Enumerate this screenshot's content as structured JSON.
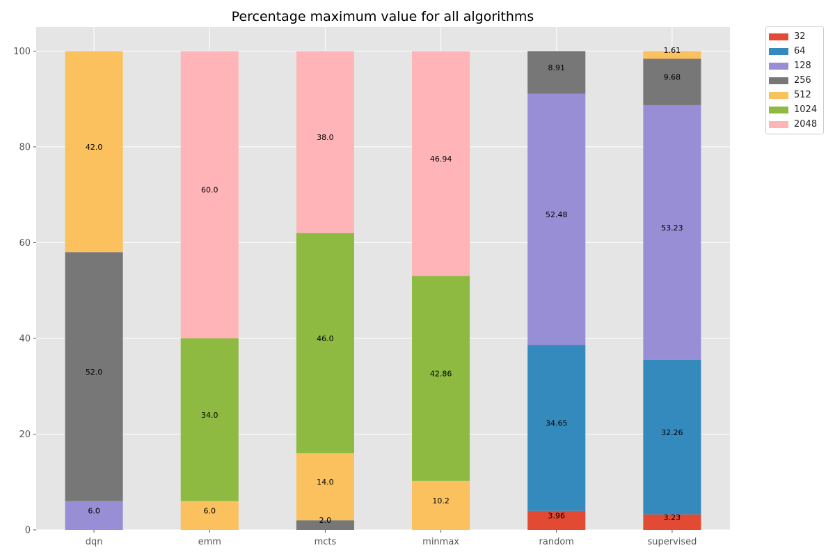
{
  "chart_data": {
    "type": "bar",
    "stacked": true,
    "title": "Percentage maximum value for all algorithms",
    "xlabel": "",
    "ylabel": "",
    "categories": [
      "dqn",
      "emm",
      "mcts",
      "minmax",
      "random",
      "supervised"
    ],
    "ylim": [
      0,
      105
    ],
    "yticks": [
      0,
      20,
      40,
      60,
      80,
      100
    ],
    "grid": true,
    "legend_position": "outside-top-right",
    "series": [
      {
        "name": "32",
        "color": "#E24A33",
        "values": [
          0,
          0,
          0,
          0,
          3.96,
          3.23
        ]
      },
      {
        "name": "64",
        "color": "#348ABD",
        "values": [
          0,
          0,
          0,
          0,
          34.65,
          32.26
        ]
      },
      {
        "name": "128",
        "color": "#988ED5",
        "values": [
          6.0,
          0,
          0,
          0,
          52.48,
          53.23
        ]
      },
      {
        "name": "256",
        "color": "#777777",
        "values": [
          52.0,
          0,
          2.0,
          0,
          8.91,
          9.68
        ]
      },
      {
        "name": "512",
        "color": "#FBC15E",
        "values": [
          42.0,
          6.0,
          14.0,
          10.2,
          0,
          1.61
        ]
      },
      {
        "name": "1024",
        "color": "#8EBA42",
        "values": [
          0,
          34.0,
          46.0,
          42.86,
          0,
          0
        ]
      },
      {
        "name": "2048",
        "color": "#FFB5B8",
        "values": [
          0,
          60.0,
          38.0,
          46.94,
          0,
          0
        ]
      }
    ],
    "data_labels": [
      [
        "",
        "",
        "6.0",
        "52.0",
        "42.0",
        "",
        ""
      ],
      [
        "",
        "",
        "",
        "",
        "6.0",
        "34.0",
        "60.0"
      ],
      [
        "",
        "",
        "",
        "2.0",
        "14.0",
        "46.0",
        "38.0"
      ],
      [
        "",
        "",
        "",
        "",
        "10.2",
        "42.86",
        "46.94"
      ],
      [
        "3.96",
        "34.65",
        "52.48",
        "8.91",
        "",
        "",
        ""
      ],
      [
        "3.23",
        "32.26",
        "53.23",
        "9.68",
        "1.61",
        "",
        ""
      ]
    ],
    "colors": {
      "plot_background": "#E5E5E5",
      "grid": "#FFFFFF",
      "tick_text": "#555555",
      "title_text": "#000000"
    }
  }
}
